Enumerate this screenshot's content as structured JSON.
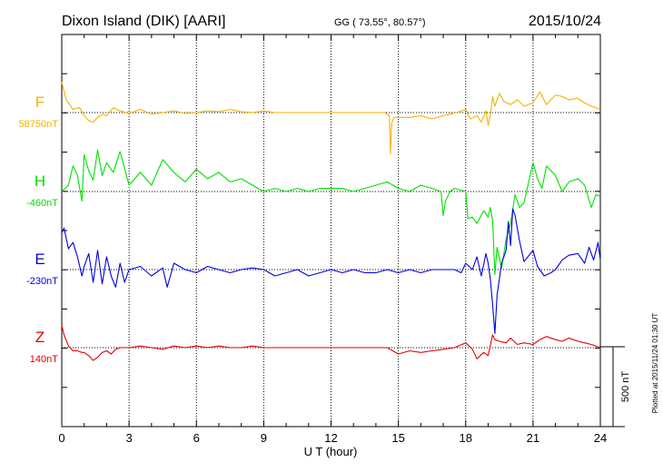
{
  "chart_data": {
    "type": "line",
    "title": "Dixon Island (DIK)  [AARI]",
    "coords": "GG ( 73.55°,  80.57°)",
    "date": "2015/10/24",
    "xlabel": "U T (hour)",
    "xlim": [
      0,
      24
    ],
    "xticks": [
      "0",
      "3",
      "6",
      "9",
      "12",
      "15",
      "18",
      "21",
      "24"
    ],
    "grid": true,
    "scale_bar_label": "500 nT",
    "scale_bar_nT": 500,
    "plotted_note": "Plotted at 2015/11/24 01:30 UT",
    "series": [
      {
        "name": "F",
        "baseline_label": "58750nT",
        "color": "#f2b300",
        "x": [
          0.0,
          0.2,
          0.5,
          0.8,
          1.0,
          1.2,
          1.4,
          1.6,
          1.8,
          2.0,
          2.3,
          2.6,
          3.0,
          3.5,
          4.0,
          4.5,
          5.0,
          5.5,
          6.0,
          6.5,
          7.0,
          7.5,
          8.0,
          8.5,
          9.0,
          9.5,
          10.0,
          10.5,
          11.0,
          11.5,
          12.0,
          12.5,
          13.0,
          13.5,
          14.0,
          14.4,
          14.6,
          14.65,
          14.7,
          14.8,
          15.0,
          15.5,
          16.0,
          16.5,
          17.0,
          17.3,
          17.6,
          18.0,
          18.2,
          18.5,
          18.7,
          18.9,
          19.0,
          19.1,
          19.2,
          19.3,
          19.4,
          19.5,
          19.7,
          20.0,
          20.3,
          20.6,
          21.0,
          21.3,
          21.6,
          22.0,
          22.3,
          22.6,
          23.0,
          23.3,
          23.6,
          24.0
        ],
        "y": [
          190,
          80,
          20,
          30,
          -20,
          -50,
          -60,
          -30,
          -10,
          -20,
          30,
          10,
          -5,
          20,
          -10,
          0,
          10,
          -5,
          0,
          10,
          5,
          20,
          5,
          0,
          10,
          0,
          0,
          0,
          0,
          0,
          0,
          0,
          0,
          0,
          0,
          0,
          -20,
          -260,
          -70,
          -30,
          -30,
          -30,
          -20,
          -40,
          -20,
          -10,
          0,
          20,
          -40,
          -20,
          -60,
          10,
          -80,
          -20,
          100,
          40,
          80,
          120,
          70,
          50,
          80,
          40,
          60,
          130,
          50,
          110,
          100,
          80,
          90,
          60,
          40,
          20
        ]
      },
      {
        "name": "H",
        "baseline_label": "-460nT",
        "color": "#00e000",
        "x": [
          0.0,
          0.3,
          0.5,
          0.7,
          0.9,
          1.0,
          1.2,
          1.4,
          1.6,
          1.8,
          2.0,
          2.3,
          2.6,
          3.0,
          3.5,
          4.0,
          4.5,
          5.0,
          5.5,
          6.0,
          6.5,
          7.0,
          7.5,
          8.0,
          8.5,
          9.0,
          9.5,
          10.0,
          10.5,
          11.0,
          11.5,
          12.0,
          12.5,
          13.0,
          13.5,
          14.0,
          14.5,
          15.0,
          15.5,
          16.0,
          16.5,
          16.9,
          17.0,
          17.1,
          17.3,
          17.5,
          18.0,
          18.1,
          18.3,
          18.5,
          18.8,
          19.0,
          19.1,
          19.2,
          19.3,
          19.4,
          19.6,
          19.8,
          20.0,
          20.2,
          20.4,
          20.6,
          21.0,
          21.2,
          21.4,
          21.6,
          22.0,
          22.3,
          22.6,
          23.0,
          23.3,
          23.6,
          23.8,
          24.0
        ],
        "y": [
          0,
          40,
          160,
          100,
          -60,
          230,
          130,
          70,
          260,
          100,
          180,
          120,
          250,
          40,
          120,
          40,
          200,
          120,
          60,
          140,
          80,
          120,
          60,
          80,
          40,
          0,
          20,
          0,
          20,
          0,
          20,
          20,
          20,
          0,
          20,
          40,
          60,
          20,
          0,
          40,
          20,
          0,
          -150,
          -60,
          0,
          20,
          0,
          -170,
          -160,
          -200,
          -120,
          -160,
          -100,
          -180,
          -520,
          -350,
          -480,
          -300,
          -200,
          -20,
          -100,
          -70,
          180,
          80,
          20,
          160,
          100,
          0,
          60,
          80,
          40,
          -100,
          -20,
          -30
        ]
      },
      {
        "name": "E",
        "baseline_label": "-230nT",
        "color": "#0000e0",
        "x": [
          0.0,
          0.1,
          0.3,
          0.5,
          0.7,
          0.9,
          1.0,
          1.2,
          1.4,
          1.6,
          1.8,
          2.0,
          2.2,
          2.4,
          2.6,
          2.8,
          3.0,
          3.5,
          4.0,
          4.5,
          4.7,
          5.0,
          5.5,
          6.0,
          6.5,
          7.0,
          7.5,
          8.0,
          8.5,
          9.0,
          9.5,
          10.0,
          10.5,
          11.0,
          11.5,
          12.0,
          12.5,
          13.0,
          13.5,
          14.0,
          14.5,
          15.0,
          15.5,
          16.0,
          16.5,
          17.0,
          17.5,
          17.8,
          18.0,
          18.3,
          18.5,
          18.7,
          18.9,
          19.0,
          19.1,
          19.2,
          19.3,
          19.4,
          19.5,
          19.6,
          19.8,
          19.9,
          20.0,
          20.1,
          20.2,
          20.4,
          20.6,
          21.0,
          21.2,
          21.5,
          21.8,
          22.0,
          22.3,
          22.6,
          23.0,
          23.3,
          23.5,
          23.7,
          23.9,
          24.0
        ],
        "y": [
          230,
          260,
          130,
          170,
          80,
          -40,
          20,
          100,
          -80,
          120,
          -90,
          80,
          -40,
          -110,
          40,
          -80,
          0,
          20,
          -40,
          10,
          -110,
          40,
          0,
          -20,
          20,
          0,
          -20,
          0,
          10,
          0,
          -40,
          -20,
          0,
          -40,
          -20,
          0,
          -20,
          0,
          -20,
          -20,
          0,
          -20,
          0,
          -20,
          0,
          0,
          0,
          -20,
          40,
          0,
          80,
          -40,
          100,
          40,
          -60,
          -220,
          -400,
          -160,
          -60,
          40,
          120,
          300,
          150,
          380,
          340,
          180,
          50,
          120,
          20,
          -40,
          -20,
          0,
          60,
          90,
          100,
          40,
          140,
          60,
          170,
          60
        ]
      },
      {
        "name": "Z",
        "baseline_label": "140nT",
        "color": "#e00000",
        "x": [
          0.0,
          0.1,
          0.3,
          0.5,
          0.7,
          0.9,
          1.0,
          1.2,
          1.4,
          1.6,
          1.8,
          2.0,
          2.2,
          2.4,
          2.6,
          3.0,
          3.5,
          4.0,
          4.5,
          5.0,
          5.5,
          6.0,
          6.5,
          7.0,
          7.5,
          8.0,
          8.5,
          9.0,
          9.5,
          10.0,
          10.5,
          11.0,
          11.5,
          12.0,
          12.5,
          13.0,
          13.5,
          14.0,
          14.5,
          15.0,
          15.5,
          16.0,
          16.5,
          17.0,
          17.5,
          18.0,
          18.3,
          18.5,
          18.8,
          19.0,
          19.2,
          19.3,
          19.5,
          19.8,
          20.0,
          20.3,
          20.6,
          21.0,
          21.3,
          21.6,
          22.0,
          22.3,
          22.6,
          23.0,
          23.3,
          23.6,
          24.0
        ],
        "y": [
          140,
          80,
          10,
          -20,
          -20,
          -30,
          -30,
          -50,
          -80,
          -60,
          -30,
          -20,
          -40,
          -10,
          0,
          0,
          10,
          0,
          -10,
          10,
          0,
          10,
          0,
          10,
          0,
          0,
          10,
          0,
          0,
          0,
          0,
          0,
          0,
          0,
          0,
          0,
          0,
          0,
          0,
          -40,
          -20,
          -30,
          -20,
          -10,
          0,
          30,
          -10,
          -70,
          -30,
          -50,
          80,
          50,
          40,
          30,
          60,
          20,
          30,
          20,
          50,
          70,
          50,
          40,
          60,
          40,
          30,
          20,
          0
        ]
      }
    ]
  }
}
